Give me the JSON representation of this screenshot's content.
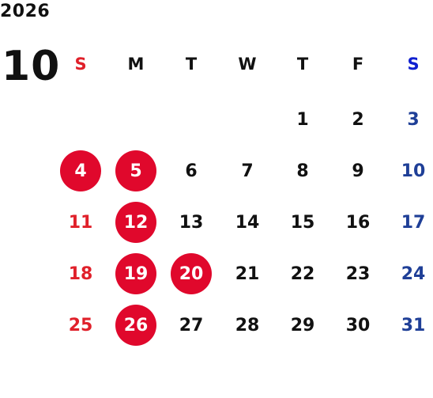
{
  "year": "2026",
  "month": "10",
  "weekdays": [
    "S",
    "M",
    "T",
    "W",
    "T",
    "F",
    "S"
  ],
  "first_weekday": 4,
  "days_in_month": 31,
  "holidays": [
    4,
    5,
    12,
    19,
    20,
    26
  ],
  "colors": {
    "sunday": "#e0202a",
    "saturday": "#1f3f97",
    "saturday_header": "#1020d0",
    "holiday_fill": "#e0082c",
    "holiday_text": "#ffffff",
    "weekday": "#111111"
  }
}
